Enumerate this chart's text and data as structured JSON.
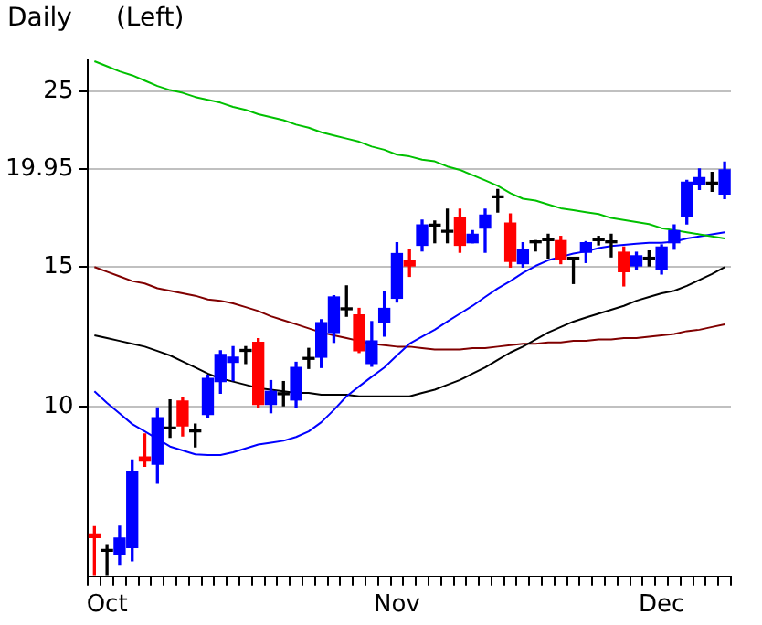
{
  "chart_data": {
    "type": "candlestick",
    "title": "Daily",
    "subtitle": "(Left)",
    "categories": [
      null,
      "Oct",
      null,
      null,
      null,
      null,
      null,
      null,
      null,
      null,
      null,
      null,
      null,
      null,
      null,
      null,
      null,
      null,
      null,
      null,
      null,
      null,
      null,
      null,
      "Nov",
      null,
      null,
      null,
      null,
      null,
      null,
      null,
      null,
      null,
      null,
      null,
      null,
      null,
      null,
      null,
      null,
      null,
      null,
      null,
      null,
      "Dec",
      null,
      null,
      null,
      null,
      null
    ],
    "ylim": [
      6.1,
      27.4
    ],
    "yticks": [
      10,
      15,
      19.95,
      25
    ],
    "log": true,
    "grid": "y",
    "series": [
      {
        "type": "candlestick",
        "ohlc": [
          [
            6.9,
            7.05,
            6.13,
            6.83
          ],
          [
            6.56,
            6.69,
            6.13,
            6.56
          ],
          [
            6.51,
            7.06,
            6.32,
            6.82
          ],
          [
            6.63,
            8.56,
            6.38,
            8.27
          ],
          [
            8.63,
            9.23,
            8.4,
            8.53
          ],
          [
            8.45,
            9.96,
            8.0,
            9.68
          ],
          [
            9.37,
            10.19,
            9.14,
            9.37
          ],
          [
            10.16,
            10.25,
            9.18,
            9.45
          ],
          [
            9.29,
            9.5,
            8.89,
            9.29
          ],
          [
            9.77,
            10.95,
            9.68,
            10.85
          ],
          [
            10.75,
            11.76,
            10.39,
            11.63
          ],
          [
            11.37,
            11.9,
            10.78,
            11.54
          ],
          [
            11.74,
            11.9,
            11.33,
            11.74
          ],
          [
            12.05,
            12.18,
            9.96,
            10.06
          ],
          [
            10.06,
            10.78,
            9.82,
            10.45
          ],
          [
            10.35,
            10.75,
            10.02,
            10.35
          ],
          [
            10.19,
            11.37,
            9.96,
            11.2
          ],
          [
            11.47,
            11.84,
            11.17,
            11.47
          ],
          [
            11.54,
            12.87,
            11.2,
            12.76
          ],
          [
            12.4,
            13.8,
            12.05,
            13.75
          ],
          [
            13.25,
            14.2,
            13.0,
            13.25
          ],
          [
            13.05,
            13.3,
            11.7,
            11.76
          ],
          [
            11.33,
            12.8,
            11.24,
            12.1
          ],
          [
            12.78,
            13.98,
            12.27,
            13.3
          ],
          [
            13.7,
            16.1,
            13.55,
            15.6
          ],
          [
            15.3,
            15.8,
            14.6,
            15.05
          ],
          [
            15.98,
            17.2,
            15.72,
            16.96
          ],
          [
            16.9,
            17.15,
            16.1,
            16.9
          ],
          [
            16.6,
            17.75,
            16.1,
            16.6
          ],
          [
            17.3,
            17.75,
            15.66,
            15.98
          ],
          [
            16.1,
            16.68,
            16.1,
            16.5
          ],
          [
            16.8,
            17.75,
            15.66,
            17.45
          ],
          [
            18.35,
            18.8,
            17.6,
            18.35
          ],
          [
            17.05,
            17.5,
            15.0,
            15.25
          ],
          [
            15.15,
            16.1,
            15.0,
            15.8
          ],
          [
            16.1,
            16.2,
            15.72,
            16.1
          ],
          [
            16.2,
            16.5,
            15.4,
            16.2
          ],
          [
            16.2,
            16.4,
            15.15,
            15.35
          ],
          [
            15.35,
            15.4,
            14.3,
            15.35
          ],
          [
            15.66,
            16.15,
            15.2,
            16.1
          ],
          [
            16.2,
            16.4,
            16.0,
            16.2
          ],
          [
            16.1,
            16.5,
            15.45,
            16.1
          ],
          [
            15.66,
            15.9,
            14.2,
            14.8
          ],
          [
            15.05,
            15.66,
            14.9,
            15.5
          ],
          [
            15.35,
            15.72,
            15.05,
            15.35
          ],
          [
            14.9,
            16.0,
            14.7,
            15.9
          ],
          [
            16.1,
            16.96,
            15.8,
            16.68
          ],
          [
            17.4,
            19.3,
            17.0,
            19.2
          ],
          [
            19.1,
            19.95,
            18.8,
            19.45
          ],
          [
            19.1,
            19.75,
            18.7,
            19.1
          ],
          [
            18.55,
            20.35,
            18.3,
            19.9
          ]
        ],
        "colors": [
          "#ff0000",
          "#000000",
          "#0000ff",
          "#0000ff",
          "#ff0000",
          "#0000ff",
          "#000000",
          "#ff0000",
          "#000000",
          "#0000ff",
          "#0000ff",
          "#0000ff",
          "#000000",
          "#ff0000",
          "#0000ff",
          "#000000",
          "#0000ff",
          "#000000",
          "#0000ff",
          "#0000ff",
          "#000000",
          "#ff0000",
          "#0000ff",
          "#0000ff",
          "#0000ff",
          "#ff0000",
          "#0000ff",
          "#000000",
          "#000000",
          "#ff0000",
          "#0000ff",
          "#0000ff",
          "#000000",
          "#ff0000",
          "#0000ff",
          "#000000",
          "#000000",
          "#ff0000",
          "#000000",
          "#0000ff",
          "#000000",
          "#000000",
          "#ff0000",
          "#0000ff",
          "#000000",
          "#0000ff",
          "#0000ff",
          "#0000ff",
          "#0000ff",
          "#000000",
          "#0000ff"
        ]
      },
      {
        "type": "line",
        "color": "#00c000",
        "values": [
          27.3,
          26.9,
          26.5,
          26.2,
          25.8,
          25.4,
          25.1,
          24.9,
          24.6,
          24.4,
          24.2,
          23.9,
          23.7,
          23.4,
          23.2,
          23.0,
          22.7,
          22.5,
          22.2,
          22.0,
          21.8,
          21.6,
          21.3,
          21.1,
          20.8,
          20.7,
          20.5,
          20.4,
          20.1,
          19.9,
          19.6,
          19.3,
          19.0,
          18.6,
          18.3,
          18.2,
          18.0,
          17.8,
          17.7,
          17.6,
          17.5,
          17.3,
          17.2,
          17.1,
          17.0,
          16.8,
          16.7,
          16.6,
          16.5,
          16.4,
          16.3
        ]
      },
      {
        "type": "line",
        "color": "#0000ff",
        "values": [
          10.45,
          10.1,
          9.8,
          9.5,
          9.3,
          9.1,
          8.9,
          8.8,
          8.7,
          8.68,
          8.68,
          8.75,
          8.85,
          8.95,
          9.0,
          9.05,
          9.15,
          9.3,
          9.55,
          9.9,
          10.3,
          10.6,
          10.9,
          11.2,
          11.6,
          12.0,
          12.25,
          12.5,
          12.8,
          13.1,
          13.4,
          13.75,
          14.1,
          14.4,
          14.75,
          15.05,
          15.3,
          15.45,
          15.6,
          15.7,
          15.85,
          15.95,
          16.0,
          16.05,
          16.1,
          16.1,
          16.15,
          16.3,
          16.4,
          16.5,
          16.6
        ]
      },
      {
        "type": "line",
        "color": "#000000",
        "values": [
          12.3,
          12.2,
          12.1,
          12.0,
          11.9,
          11.75,
          11.6,
          11.4,
          11.2,
          11.0,
          10.85,
          10.75,
          10.65,
          10.55,
          10.5,
          10.45,
          10.4,
          10.4,
          10.35,
          10.35,
          10.35,
          10.3,
          10.3,
          10.3,
          10.3,
          10.3,
          10.4,
          10.5,
          10.65,
          10.8,
          11.0,
          11.2,
          11.45,
          11.7,
          11.9,
          12.15,
          12.4,
          12.6,
          12.8,
          12.95,
          13.1,
          13.25,
          13.4,
          13.6,
          13.75,
          13.9,
          14.0,
          14.2,
          14.45,
          14.7,
          15.0
        ]
      },
      {
        "type": "line",
        "color": "#800000",
        "values": [
          15.0,
          14.8,
          14.6,
          14.4,
          14.3,
          14.1,
          14.0,
          13.9,
          13.8,
          13.65,
          13.6,
          13.5,
          13.35,
          13.2,
          13.0,
          12.85,
          12.7,
          12.55,
          12.4,
          12.3,
          12.2,
          12.1,
          12.0,
          11.95,
          11.9,
          11.9,
          11.85,
          11.8,
          11.8,
          11.8,
          11.85,
          11.85,
          11.9,
          11.95,
          12.0,
          12.0,
          12.05,
          12.05,
          12.1,
          12.1,
          12.15,
          12.15,
          12.2,
          12.2,
          12.25,
          12.3,
          12.35,
          12.45,
          12.5,
          12.6,
          12.7
        ]
      }
    ]
  }
}
